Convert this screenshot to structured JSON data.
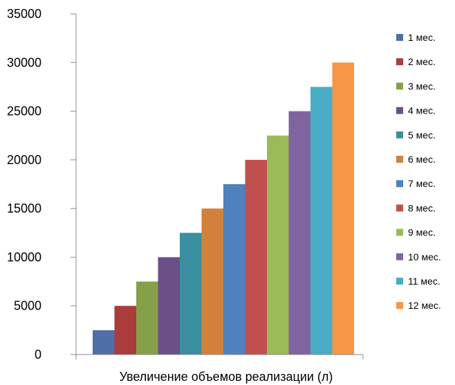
{
  "chart_data": {
    "type": "bar",
    "title": "",
    "xlabel": "Увеличение объемов реализации (л)",
    "ylabel": "",
    "ylim": [
      0,
      35000
    ],
    "yticks": [
      0,
      5000,
      10000,
      15000,
      20000,
      25000,
      30000,
      35000
    ],
    "grid": false,
    "legend_position": "right",
    "categories": [
      ""
    ],
    "series": [
      {
        "name": "1 мес.",
        "values": [
          2500
        ],
        "color": "#4F6FA8"
      },
      {
        "name": "2 мес.",
        "values": [
          5000
        ],
        "color": "#AA3C3A"
      },
      {
        "name": "3 мес.",
        "values": [
          7500
        ],
        "color": "#86A04A"
      },
      {
        "name": "4 мес.",
        "values": [
          10000
        ],
        "color": "#6B5088"
      },
      {
        "name": "5 мес.",
        "values": [
          12500
        ],
        "color": "#3A8FA1"
      },
      {
        "name": "6 мес.",
        "values": [
          15000
        ],
        "color": "#D2813C"
      },
      {
        "name": "7 мес.",
        "values": [
          17500
        ],
        "color": "#4F81BD"
      },
      {
        "name": "8 мес.",
        "values": [
          20000
        ],
        "color": "#C0504D"
      },
      {
        "name": "9 мес.",
        "values": [
          22500
        ],
        "color": "#9BBB59"
      },
      {
        "name": "10 мес.",
        "values": [
          25000
        ],
        "color": "#8064A2"
      },
      {
        "name": "11 мес.",
        "values": [
          27500
        ],
        "color": "#4BACC6"
      },
      {
        "name": "12 мес.",
        "values": [
          30000
        ],
        "color": "#F79646"
      }
    ]
  }
}
